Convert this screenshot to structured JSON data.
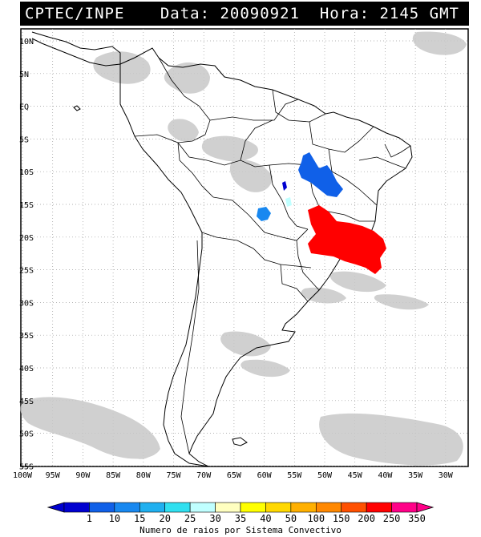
{
  "header": {
    "left": "CPTEC/INPE",
    "right": "Data: 20090921  Hora: 2145 GMT"
  },
  "latitudes": [
    "10N",
    "5N",
    "EQ",
    "5S",
    "10S",
    "15S",
    "20S",
    "25S",
    "30S",
    "35S",
    "40S",
    "45S",
    "50S",
    "55S"
  ],
  "longitudes": [
    "100W",
    "95W",
    "90W",
    "85W",
    "80W",
    "75W",
    "70W",
    "65W",
    "60W",
    "55W",
    "50W",
    "45W",
    "40W",
    "35W",
    "30W"
  ],
  "legend": {
    "labels": [
      "1",
      "10",
      "15",
      "20",
      "25",
      "30",
      "35",
      "40",
      "50",
      "100",
      "150",
      "200",
      "250",
      "350"
    ],
    "colors": [
      "#0000d0",
      "#1060e8",
      "#1888f0",
      "#20b0f0",
      "#30e0f0",
      "#c0ffff",
      "#ffffc0",
      "#ffff00",
      "#ffd800",
      "#ffb000",
      "#ff8800",
      "#ff5000",
      "#ff0000",
      "#ff0088"
    ],
    "title": "Numero de raios por Sistema Convectivo"
  },
  "colors": {
    "header_bg": "#000000",
    "cloud": "#c8c8c8",
    "coast": "#000000",
    "grid": "#9a9a9a"
  }
}
